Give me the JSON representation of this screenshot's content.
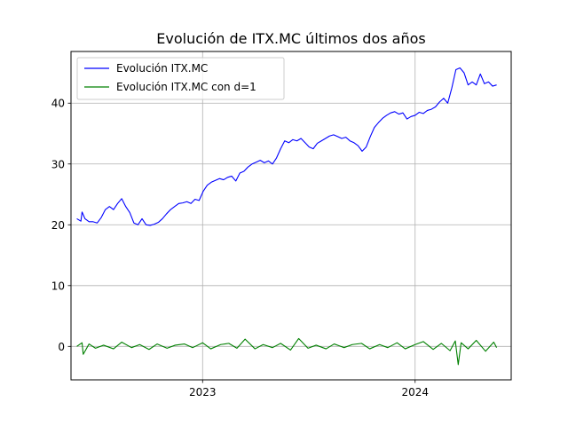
{
  "chart_data": {
    "type": "line",
    "title": "Evolución de ITX.MC últimos dos años",
    "xlabel": "",
    "ylabel": "",
    "x_ticks": [
      "2023",
      "2024"
    ],
    "y_ticks": [
      0,
      10,
      20,
      30,
      40
    ],
    "xlim": [
      "2022-05-20",
      "2024-06-14"
    ],
    "ylim": [
      -5.5,
      48.5
    ],
    "grid": true,
    "legend_position": "top-left",
    "series": [
      {
        "name": "Evolución ITX.MC",
        "color": "#0000ff",
        "x": [
          "2022-05-30",
          "2022-06-06",
          "2022-06-08",
          "2022-06-13",
          "2022-06-20",
          "2022-06-27",
          "2022-07-04",
          "2022-07-11",
          "2022-07-18",
          "2022-07-25",
          "2022-08-01",
          "2022-08-08",
          "2022-08-15",
          "2022-08-22",
          "2022-08-29",
          "2022-09-05",
          "2022-09-12",
          "2022-09-19",
          "2022-09-26",
          "2022-10-03",
          "2022-10-10",
          "2022-10-17",
          "2022-10-24",
          "2022-10-31",
          "2022-11-07",
          "2022-11-14",
          "2022-11-21",
          "2022-11-28",
          "2022-12-05",
          "2022-12-12",
          "2022-12-19",
          "2022-12-26",
          "2023-01-02",
          "2023-01-09",
          "2023-01-16",
          "2023-01-23",
          "2023-01-30",
          "2023-02-06",
          "2023-02-13",
          "2023-02-20",
          "2023-02-27",
          "2023-03-06",
          "2023-03-13",
          "2023-03-20",
          "2023-03-27",
          "2023-04-03",
          "2023-04-10",
          "2023-04-17",
          "2023-04-24",
          "2023-05-01",
          "2023-05-08",
          "2023-05-15",
          "2023-05-22",
          "2023-05-29",
          "2023-06-05",
          "2023-06-12",
          "2023-06-19",
          "2023-06-26",
          "2023-07-03",
          "2023-07-10",
          "2023-07-17",
          "2023-07-24",
          "2023-07-31",
          "2023-08-07",
          "2023-08-14",
          "2023-08-21",
          "2023-08-28",
          "2023-09-04",
          "2023-09-11",
          "2023-09-18",
          "2023-09-25",
          "2023-10-02",
          "2023-10-09",
          "2023-10-16",
          "2023-10-23",
          "2023-10-30",
          "2023-11-06",
          "2023-11-13",
          "2023-11-20",
          "2023-11-27",
          "2023-12-04",
          "2023-12-11",
          "2023-12-18",
          "2023-12-25",
          "2024-01-01",
          "2024-01-08",
          "2024-01-15",
          "2024-01-22",
          "2024-01-29",
          "2024-02-05",
          "2024-02-12",
          "2024-02-19",
          "2024-02-26",
          "2024-03-04",
          "2024-03-11",
          "2024-03-18",
          "2024-03-25",
          "2024-04-01",
          "2024-04-08",
          "2024-04-15",
          "2024-04-22",
          "2024-04-29",
          "2024-05-06",
          "2024-05-13",
          "2024-05-20"
        ],
        "y": [
          21.0,
          20.6,
          22.1,
          21.0,
          20.5,
          20.5,
          20.3,
          21.2,
          22.5,
          23.0,
          22.5,
          23.5,
          24.3,
          23.0,
          22.0,
          20.3,
          20.0,
          21.0,
          20.0,
          19.9,
          20.1,
          20.4,
          21.0,
          21.8,
          22.5,
          23.0,
          23.5,
          23.6,
          23.8,
          23.5,
          24.2,
          24.0,
          25.5,
          26.5,
          27.0,
          27.3,
          27.6,
          27.4,
          27.8,
          28.0,
          27.2,
          28.5,
          28.8,
          29.5,
          30.0,
          30.3,
          30.6,
          30.2,
          30.5,
          30.0,
          31.0,
          32.5,
          33.8,
          33.5,
          34.0,
          33.8,
          34.2,
          33.5,
          32.8,
          32.5,
          33.4,
          33.8,
          34.2,
          34.6,
          34.8,
          34.5,
          34.2,
          34.4,
          33.8,
          33.5,
          33.0,
          32.1,
          32.8,
          34.5,
          36.0,
          36.8,
          37.5,
          38.0,
          38.4,
          38.6,
          38.2,
          38.4,
          37.4,
          37.8,
          38.0,
          38.5,
          38.3,
          38.8,
          39.0,
          39.4,
          40.2,
          40.8,
          40.0,
          42.5,
          45.5,
          45.8,
          45.0,
          43.0,
          43.5,
          43.0,
          44.8,
          43.2,
          43.5,
          42.8,
          43.0
        ]
      },
      {
        "name": "Evolución ITX.MC con d=1",
        "color": "#008000",
        "x": [
          "2022-05-30",
          "2022-06-08",
          "2022-06-10",
          "2022-06-20",
          "2022-07-01",
          "2022-07-15",
          "2022-08-01",
          "2022-08-15",
          "2022-09-01",
          "2022-09-15",
          "2022-10-01",
          "2022-10-15",
          "2022-11-01",
          "2022-11-15",
          "2022-12-01",
          "2022-12-15",
          "2023-01-01",
          "2023-01-15",
          "2023-02-01",
          "2023-02-15",
          "2023-03-01",
          "2023-03-15",
          "2023-04-01",
          "2023-04-15",
          "2023-05-01",
          "2023-05-15",
          "2023-06-01",
          "2023-06-15",
          "2023-07-01",
          "2023-07-15",
          "2023-08-01",
          "2023-08-15",
          "2023-09-01",
          "2023-09-15",
          "2023-10-01",
          "2023-10-15",
          "2023-11-01",
          "2023-11-15",
          "2023-12-01",
          "2023-12-15",
          "2024-01-01",
          "2024-01-15",
          "2024-02-01",
          "2024-02-15",
          "2024-03-01",
          "2024-03-10",
          "2024-03-15",
          "2024-03-20",
          "2024-04-01",
          "2024-04-15",
          "2024-05-01",
          "2024-05-15",
          "2024-05-20"
        ],
        "y": [
          0.0,
          0.6,
          -1.3,
          0.4,
          -0.3,
          0.2,
          -0.4,
          0.7,
          -0.2,
          0.3,
          -0.5,
          0.4,
          -0.3,
          0.2,
          0.4,
          -0.2,
          0.6,
          -0.4,
          0.3,
          0.5,
          -0.3,
          1.2,
          -0.4,
          0.3,
          -0.2,
          0.5,
          -0.6,
          1.3,
          -0.3,
          0.2,
          -0.4,
          0.4,
          -0.2,
          0.3,
          0.5,
          -0.4,
          0.3,
          -0.2,
          0.6,
          -0.4,
          0.3,
          0.8,
          -0.5,
          0.5,
          -0.7,
          0.9,
          -3.0,
          0.6,
          -0.4,
          1.0,
          -0.8,
          0.7,
          -0.2
        ]
      }
    ]
  }
}
